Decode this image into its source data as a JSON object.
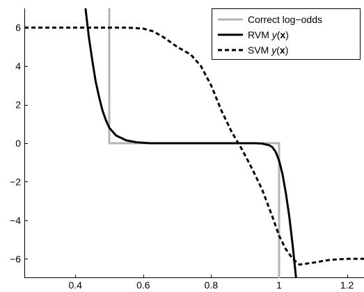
{
  "chart_data": {
    "type": "line",
    "title": "",
    "xlabel": "",
    "ylabel": "",
    "xlim": [
      0.25,
      1.25
    ],
    "ylim": [
      -7,
      7
    ],
    "xticks": [
      0.4,
      0.6,
      0.8,
      1.0,
      1.2
    ],
    "xtick_labels": [
      "0.4",
      "0.6",
      "0.8",
      "1",
      "1.2"
    ],
    "yticks": [
      -6,
      -4,
      -2,
      0,
      2,
      4,
      6
    ],
    "ytick_labels": [
      "−6",
      "−4",
      "−2",
      "0",
      "2",
      "4",
      "6"
    ],
    "grid": false,
    "legend_position": "top-right",
    "series": [
      {
        "name_prefix": "Correct log−odds",
        "name_var": "",
        "name_bold": "",
        "name_suffix": "",
        "style": "solid",
        "color": "#b3b3b3",
        "x": [
          0.5,
          0.5,
          0.5,
          1.0,
          1.0,
          1.0
        ],
        "y": [
          7,
          6,
          0,
          0,
          -6,
          -7
        ]
      },
      {
        "name_prefix": "RVM ",
        "name_var": "y",
        "name_bold": "x",
        "name_suffix": "",
        "style": "solid",
        "color": "#000000",
        "x": [
          0.43,
          0.44,
          0.45,
          0.46,
          0.47,
          0.48,
          0.49,
          0.5,
          0.52,
          0.55,
          0.58,
          0.62,
          0.7,
          0.8,
          0.85,
          0.9,
          0.93,
          0.95,
          0.97,
          0.98,
          0.99,
          1.0,
          1.01,
          1.02,
          1.03,
          1.04,
          1.05
        ],
        "y": [
          7.0,
          5.5,
          4.3,
          3.2,
          2.4,
          1.7,
          1.2,
          0.8,
          0.4,
          0.15,
          0.05,
          0.0,
          0.0,
          0.0,
          0.0,
          0.0,
          0.0,
          -0.02,
          -0.1,
          -0.2,
          -0.45,
          -0.9,
          -1.6,
          -2.6,
          -3.8,
          -5.3,
          -7.0
        ]
      },
      {
        "name_prefix": "SVM ",
        "name_var": "y",
        "name_bold": "x",
        "name_suffix": "",
        "style": "dashed",
        "color": "#000000",
        "x": [
          0.25,
          0.35,
          0.45,
          0.55,
          0.6,
          0.63,
          0.66,
          0.7,
          0.74,
          0.77,
          0.8,
          0.83,
          0.86,
          0.89,
          0.92,
          0.95,
          0.98,
          1.0,
          1.02,
          1.04,
          1.06,
          1.1,
          1.15,
          1.2,
          1.25
        ],
        "y": [
          6.0,
          6.0,
          6.0,
          6.0,
          5.95,
          5.8,
          5.5,
          5.0,
          4.6,
          4.0,
          3.0,
          1.7,
          0.6,
          -0.3,
          -1.3,
          -2.4,
          -3.8,
          -4.8,
          -5.5,
          -6.0,
          -6.3,
          -6.2,
          -6.05,
          -6.0,
          -6.0
        ]
      }
    ]
  }
}
